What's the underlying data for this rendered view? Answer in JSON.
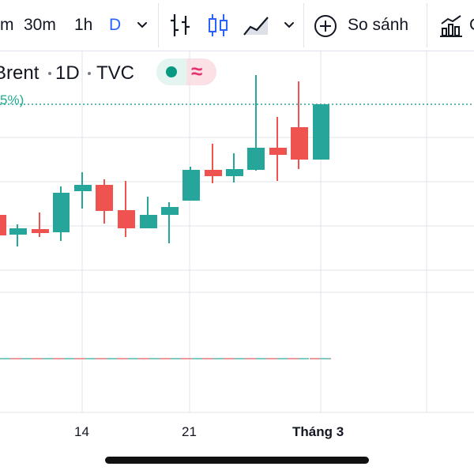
{
  "toolbar": {
    "intervals": [
      "m",
      "30m",
      "1h",
      "D"
    ],
    "compare_label": "So sánh",
    "right_clip": "C",
    "icons": [
      "chevron-down-icon",
      "bar-chart-icon",
      "candles-icon",
      "area-chart-icon",
      "chevron-down-icon",
      "plus-circle-icon",
      "indicators-icon"
    ]
  },
  "legend": {
    "symbol": "Brent",
    "interval": "1D",
    "exchange": "TVC",
    "change_clip": "5%)"
  },
  "colors": {
    "up": "#26a69a",
    "down": "#ef5350",
    "price_line": "#22ab94",
    "grid": "#e0e3eb",
    "accent": "#2962ff"
  },
  "chart_data": {
    "type": "candlestick",
    "series": [
      {
        "o": 5,
        "h": 3,
        "l": 4,
        "c": 4,
        "color": "down"
      },
      {
        "o": 2,
        "h": 1,
        "l": 1,
        "c": 3,
        "color": "up"
      },
      {
        "o": 1,
        "h": 2,
        "l": 1,
        "c": 1,
        "color": "down"
      },
      {
        "o": 1,
        "h": 3,
        "l": 1,
        "c": 5,
        "color": "up"
      },
      {
        "o": 4,
        "h": 5,
        "l": 4,
        "c": 5,
        "color": "up"
      },
      {
        "o": 5,
        "h": 5,
        "l": 4,
        "c": 4,
        "color": "down"
      },
      {
        "o": 2,
        "h": 3,
        "l": 2,
        "c": 2,
        "color": "down"
      }
    ],
    "note_values_are_illustrative": "",
    "x_ticks": [
      "14",
      "21",
      "Tháng 3"
    ]
  }
}
